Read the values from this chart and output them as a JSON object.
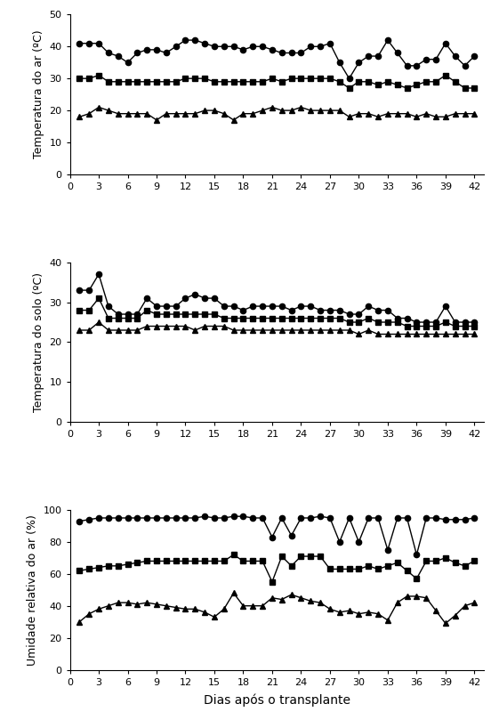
{
  "x": [
    1,
    2,
    3,
    4,
    5,
    6,
    7,
    8,
    9,
    10,
    11,
    12,
    13,
    14,
    15,
    16,
    17,
    18,
    19,
    20,
    21,
    22,
    23,
    24,
    25,
    26,
    27,
    28,
    29,
    30,
    31,
    32,
    33,
    34,
    35,
    36,
    37,
    38,
    39,
    40,
    41,
    42
  ],
  "temp_ar_max": [
    41,
    41,
    41,
    38,
    37,
    35,
    38,
    39,
    39,
    38,
    40,
    42,
    42,
    41,
    40,
    40,
    40,
    39,
    40,
    40,
    39,
    38,
    38,
    38,
    40,
    40,
    41,
    35,
    30,
    35,
    37,
    37,
    42,
    38,
    34,
    34,
    36,
    36,
    41,
    37,
    34,
    37
  ],
  "temp_ar_med": [
    30,
    30,
    31,
    29,
    29,
    29,
    29,
    29,
    29,
    29,
    29,
    30,
    30,
    30,
    29,
    29,
    29,
    29,
    29,
    29,
    30,
    29,
    30,
    30,
    30,
    30,
    30,
    29,
    27,
    29,
    29,
    28,
    29,
    28,
    27,
    28,
    29,
    29,
    31,
    29,
    27,
    27
  ],
  "temp_ar_min": [
    18,
    19,
    21,
    20,
    19,
    19,
    19,
    19,
    17,
    19,
    19,
    19,
    19,
    20,
    20,
    19,
    17,
    19,
    19,
    20,
    21,
    20,
    20,
    21,
    20,
    20,
    20,
    20,
    18,
    19,
    19,
    18,
    19,
    19,
    19,
    18,
    19,
    18,
    18,
    19,
    19,
    19
  ],
  "temp_solo_max": [
    33,
    33,
    37,
    29,
    27,
    27,
    27,
    31,
    29,
    29,
    29,
    31,
    32,
    31,
    31,
    29,
    29,
    28,
    29,
    29,
    29,
    29,
    28,
    29,
    29,
    28,
    28,
    28,
    27,
    27,
    29,
    28,
    28,
    26,
    26,
    25,
    25,
    25,
    29,
    25,
    25,
    25
  ],
  "temp_solo_med": [
    28,
    28,
    31,
    26,
    26,
    26,
    26,
    28,
    27,
    27,
    27,
    27,
    27,
    27,
    27,
    26,
    26,
    26,
    26,
    26,
    26,
    26,
    26,
    26,
    26,
    26,
    26,
    26,
    25,
    25,
    26,
    25,
    25,
    25,
    24,
    24,
    24,
    24,
    25,
    24,
    24,
    24
  ],
  "temp_solo_min": [
    23,
    23,
    25,
    23,
    23,
    23,
    23,
    24,
    24,
    24,
    24,
    24,
    23,
    24,
    24,
    24,
    23,
    23,
    23,
    23,
    23,
    23,
    23,
    23,
    23,
    23,
    23,
    23,
    23,
    22,
    23,
    22,
    22,
    22,
    22,
    22,
    22,
    22,
    22,
    22,
    22,
    22
  ],
  "umid_max": [
    93,
    94,
    95,
    95,
    95,
    95,
    95,
    95,
    95,
    95,
    95,
    95,
    95,
    96,
    95,
    95,
    96,
    96,
    95,
    95,
    83,
    95,
    84,
    95,
    95,
    96,
    95,
    80,
    95,
    80,
    95,
    95,
    75,
    95,
    95,
    72,
    95,
    95,
    94,
    94,
    94,
    95
  ],
  "umid_med": [
    62,
    63,
    64,
    65,
    65,
    66,
    67,
    68,
    68,
    68,
    68,
    68,
    68,
    68,
    68,
    68,
    72,
    68,
    68,
    68,
    55,
    71,
    65,
    71,
    71,
    71,
    63,
    63,
    63,
    63,
    65,
    63,
    65,
    67,
    62,
    57,
    68,
    68,
    70,
    67,
    65,
    68
  ],
  "umid_min": [
    30,
    35,
    38,
    40,
    42,
    42,
    41,
    42,
    41,
    40,
    39,
    38,
    38,
    36,
    33,
    38,
    48,
    40,
    40,
    40,
    45,
    44,
    47,
    45,
    43,
    42,
    38,
    36,
    37,
    35,
    36,
    35,
    31,
    42,
    46,
    46,
    45,
    37,
    29,
    34,
    40,
    42
  ],
  "ylabel1": "Temperatura do ar (ºC)",
  "ylabel2": "Temperatura do solo (ºC)",
  "ylabel3": "Umidade relativa do ar (%)",
  "xlabel": "Dias após o transplante",
  "ylim1": [
    0,
    50
  ],
  "ylim2": [
    0,
    40
  ],
  "ylim3": [
    0,
    100
  ],
  "yticks1": [
    0,
    10,
    20,
    30,
    40,
    50
  ],
  "yticks2": [
    0,
    10,
    20,
    30,
    40
  ],
  "yticks3": [
    0,
    20,
    40,
    60,
    80,
    100
  ],
  "xticks": [
    0,
    3,
    6,
    9,
    12,
    15,
    18,
    21,
    24,
    27,
    30,
    33,
    36,
    39,
    42
  ],
  "line_color": "black",
  "marker_circle": "o",
  "marker_square": "s",
  "marker_triangle": "^",
  "markersize": 4.5,
  "linewidth": 1.0,
  "fontsize_label": 9,
  "fontsize_tick": 8,
  "fontsize_xlabel": 10,
  "background_color": "white"
}
